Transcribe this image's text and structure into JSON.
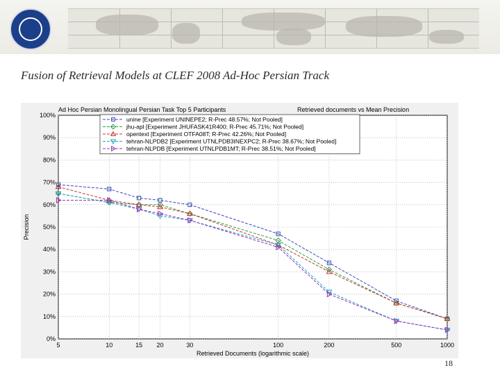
{
  "slide": {
    "title": "Fusion of Retrieval Models at CLEF 2008 Ad-Hoc Persian Track",
    "page_number": "18"
  },
  "logo": {
    "icon": "university-logo-icon"
  },
  "chart_data": {
    "type": "line",
    "title": "Ad Hoc Persian Monolingual Persian Task Top 5 Participants",
    "subtitle": "Retrieved documents vs Mean Precision",
    "xlabel": "Retrieved Documents (logarithmic scale)",
    "ylabel": "Precision",
    "x_scale": "log",
    "x": [
      5,
      10,
      15,
      20,
      30,
      100,
      200,
      500,
      1000
    ],
    "x_tick_labels": [
      "5",
      "10",
      "15",
      "20",
      "30",
      "100",
      "200",
      "500",
      "1000"
    ],
    "ylim": [
      0,
      100
    ],
    "y_ticks": [
      0,
      10,
      20,
      30,
      40,
      50,
      60,
      70,
      80,
      90,
      100
    ],
    "y_tick_labels": [
      "0%",
      "10%",
      "20%",
      "30%",
      "40%",
      "50%",
      "60%",
      "70%",
      "80%",
      "90%",
      "100%"
    ],
    "grid": true,
    "legend_position": "top",
    "series": [
      {
        "name": "unine [Experiment UNINEPE2; R-Prec 48.57%; Not Pooled]",
        "color": "#3b47b8",
        "marker": "square",
        "values": [
          69,
          67,
          63,
          62,
          60,
          47,
          34,
          17,
          9
        ]
      },
      {
        "name": "jhu-apl [Experiment JHUFASK41R400; R-Prec 45.71%; Not Pooled]",
        "color": "#2e9e4a",
        "marker": "diamond",
        "values": [
          65,
          61,
          60,
          60,
          56,
          44,
          31,
          16,
          9
        ]
      },
      {
        "name": "opentext [Experiment OTFA08T; R-Prec 42.26%; Not Pooled]",
        "color": "#c0392b",
        "marker": "triangle-up",
        "values": [
          68,
          62,
          60,
          59,
          56,
          42,
          30,
          16,
          9
        ]
      },
      {
        "name": "tehran-NLPDB2 [Experiment UTNLPDB3INEXPC2; R-Prec 38.67%; Not Pooled]",
        "color": "#1ca6c2",
        "marker": "triangle-down",
        "values": [
          65,
          61,
          58,
          55,
          53,
          42,
          21,
          8,
          4
        ]
      },
      {
        "name": "tehran-NLPDB [Experiment UTNLPDB1MT; R-Prec 38.51%; Not Pooled]",
        "color": "#9b2fb0",
        "marker": "triangle-right",
        "values": [
          62,
          62,
          58,
          56,
          53,
          41,
          20,
          8,
          4
        ]
      }
    ]
  }
}
